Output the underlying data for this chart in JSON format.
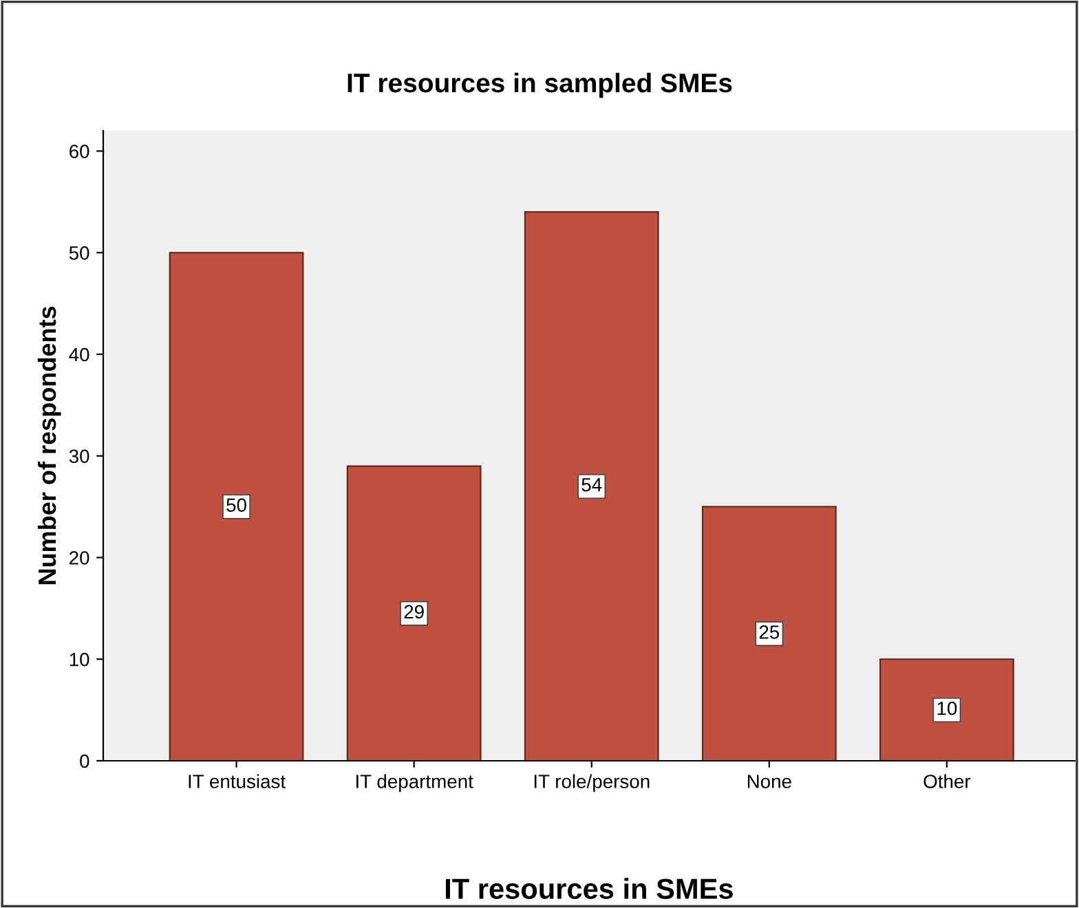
{
  "chart_data": {
    "type": "bar",
    "title": "IT resources in sampled SMEs",
    "xlabel": "IT resources in SMEs",
    "ylabel": "Number of respondents",
    "categories": [
      "IT entusiast",
      "IT department",
      "IT role/person",
      "None",
      "Other"
    ],
    "values": [
      50,
      29,
      54,
      25,
      10
    ],
    "color": "#c0503f",
    "ylim": [
      0,
      62
    ],
    "yticks": [
      0,
      10,
      20,
      30,
      40,
      50,
      60
    ],
    "grid": false,
    "data_labels": true
  }
}
